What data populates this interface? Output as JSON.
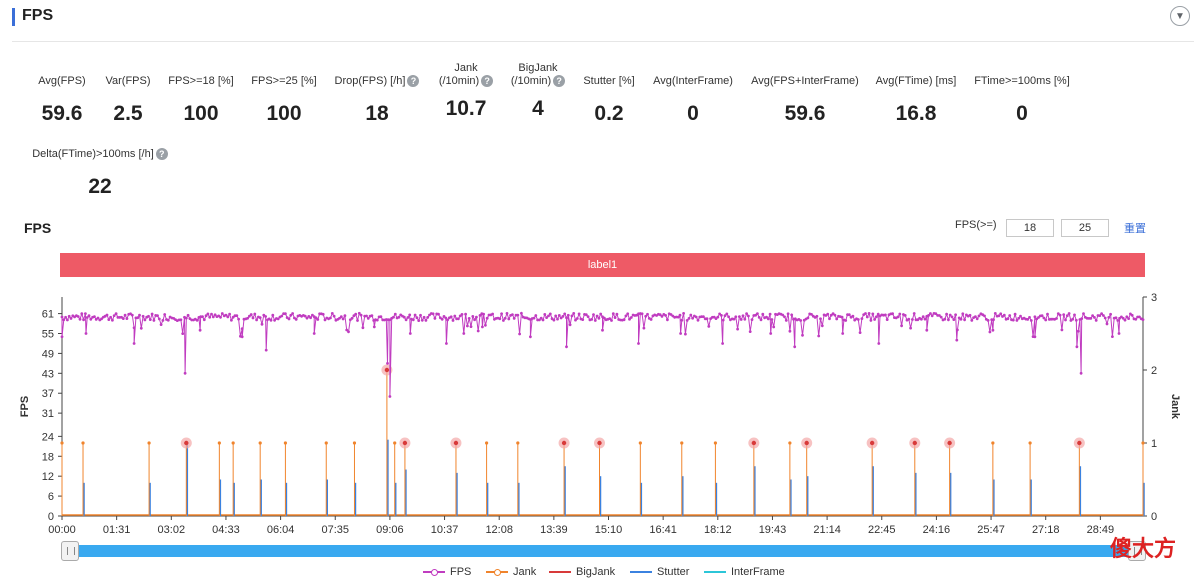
{
  "section": {
    "title": "FPS"
  },
  "metrics": [
    {
      "label": "Avg(FPS)",
      "value": "59.6"
    },
    {
      "label": "Var(FPS)",
      "value": "2.5"
    },
    {
      "label": "FPS>=18 [%]",
      "value": "100"
    },
    {
      "label": "FPS>=25 [%]",
      "value": "100"
    },
    {
      "label": "Drop(FPS) [/h]",
      "value": "18",
      "help": true
    },
    {
      "label": "Jank\n(/10min)",
      "value": "10.7",
      "help": true
    },
    {
      "label": "BigJank\n(/10min)",
      "value": "4",
      "help": true
    },
    {
      "label": "Stutter [%]",
      "value": "0.2"
    },
    {
      "label": "Avg(InterFrame)",
      "value": "0"
    },
    {
      "label": "Avg(FPS+InterFrame)",
      "value": "59.6"
    },
    {
      "label": "Avg(FTime) [ms]",
      "value": "16.8"
    },
    {
      "label": "FTime>=100ms [%]",
      "value": "0"
    },
    {
      "label": "Delta(FTime)>100ms [/h]",
      "value": "22",
      "help": true
    }
  ],
  "chart_header": {
    "title": "FPS",
    "filter_label": "FPS(>=)",
    "threshold_1": "18",
    "threshold_2": "25",
    "reset_label": "重置"
  },
  "label_band": {
    "text": "label1"
  },
  "watermark": "傻大方",
  "colors": {
    "fps": "#c03cc0",
    "jank": "#f0842c",
    "bigjank": "#d83a3a",
    "stutter": "#3b82e0",
    "interframe": "#2cc6d8",
    "band": "#ee5a66"
  },
  "chart_data": {
    "type": "line",
    "title": "FPS",
    "ylabel": "FPS",
    "y2label": "Jank",
    "yticks": [
      0,
      6,
      12,
      18,
      24,
      31,
      37,
      43,
      49,
      55,
      61
    ],
    "ylim": [
      0,
      66
    ],
    "y2ticks": [
      0,
      1,
      2,
      3
    ],
    "y2lim": [
      0,
      3
    ],
    "xticks": [
      "00:00",
      "01:31",
      "03:02",
      "04:33",
      "06:04",
      "07:35",
      "09:06",
      "10:37",
      "12:08",
      "13:39",
      "15:10",
      "16:41",
      "18:12",
      "19:43",
      "21:14",
      "22:45",
      "24:16",
      "25:47",
      "27:18",
      "28:49"
    ],
    "x_range_seconds": [
      0,
      1800
    ],
    "fps_baseline": 60,
    "fps_dips": [
      {
        "t": 0,
        "fps": 54
      },
      {
        "t": 40,
        "fps": 55
      },
      {
        "t": 120,
        "fps": 52
      },
      {
        "t": 230,
        "fps": 56
      },
      {
        "t": 300,
        "fps": 54
      },
      {
        "t": 340,
        "fps": 50
      },
      {
        "t": 420,
        "fps": 55
      },
      {
        "t": 520,
        "fps": 57
      },
      {
        "t": 580,
        "fps": 55
      },
      {
        "t": 640,
        "fps": 52
      },
      {
        "t": 700,
        "fps": 57
      },
      {
        "t": 780,
        "fps": 54
      },
      {
        "t": 840,
        "fps": 51
      },
      {
        "t": 900,
        "fps": 56
      },
      {
        "t": 960,
        "fps": 52
      },
      {
        "t": 1030,
        "fps": 55
      },
      {
        "t": 1100,
        "fps": 52
      },
      {
        "t": 1180,
        "fps": 55
      },
      {
        "t": 1220,
        "fps": 51
      },
      {
        "t": 1300,
        "fps": 55
      },
      {
        "t": 1360,
        "fps": 52
      },
      {
        "t": 1440,
        "fps": 56
      },
      {
        "t": 1490,
        "fps": 53
      },
      {
        "t": 1550,
        "fps": 56
      },
      {
        "t": 1620,
        "fps": 54
      },
      {
        "t": 1690,
        "fps": 51
      },
      {
        "t": 1760,
        "fps": 55
      }
    ],
    "fps_big_dips": [
      {
        "t": 205,
        "fps": 43
      },
      {
        "t": 542,
        "fps": 46
      },
      {
        "t": 546,
        "fps": 36
      },
      {
        "t": 1697,
        "fps": 43
      }
    ],
    "jank_events": [
      {
        "t": 0,
        "jank": 1
      },
      {
        "t": 35,
        "jank": 1
      },
      {
        "t": 145,
        "jank": 1
      },
      {
        "t": 207,
        "jank": 1,
        "big": true
      },
      {
        "t": 262,
        "jank": 1
      },
      {
        "t": 285,
        "jank": 1
      },
      {
        "t": 330,
        "jank": 1
      },
      {
        "t": 372,
        "jank": 1
      },
      {
        "t": 440,
        "jank": 1
      },
      {
        "t": 487,
        "jank": 1
      },
      {
        "t": 541,
        "jank": 2,
        "big": true
      },
      {
        "t": 554,
        "jank": 1
      },
      {
        "t": 571,
        "jank": 1,
        "big": true
      },
      {
        "t": 656,
        "jank": 1,
        "big": true
      },
      {
        "t": 707,
        "jank": 1
      },
      {
        "t": 759,
        "jank": 1
      },
      {
        "t": 836,
        "jank": 1,
        "big": true
      },
      {
        "t": 895,
        "jank": 1,
        "big": true
      },
      {
        "t": 963,
        "jank": 1
      },
      {
        "t": 1032,
        "jank": 1
      },
      {
        "t": 1088,
        "jank": 1
      },
      {
        "t": 1152,
        "jank": 1,
        "big": true
      },
      {
        "t": 1212,
        "jank": 1
      },
      {
        "t": 1240,
        "jank": 1,
        "big": true
      },
      {
        "t": 1349,
        "jank": 1,
        "big": true
      },
      {
        "t": 1420,
        "jank": 1,
        "big": true
      },
      {
        "t": 1478,
        "jank": 1,
        "big": true
      },
      {
        "t": 1550,
        "jank": 1
      },
      {
        "t": 1612,
        "jank": 1
      },
      {
        "t": 1694,
        "jank": 1,
        "big": true
      },
      {
        "t": 1800,
        "jank": 1
      }
    ],
    "stutter_events": [
      {
        "t": 35,
        "fps": 10
      },
      {
        "t": 145,
        "fps": 10
      },
      {
        "t": 207,
        "fps": 22
      },
      {
        "t": 262,
        "fps": 11
      },
      {
        "t": 285,
        "fps": 10
      },
      {
        "t": 330,
        "fps": 11
      },
      {
        "t": 372,
        "fps": 10
      },
      {
        "t": 440,
        "fps": 11
      },
      {
        "t": 487,
        "fps": 10
      },
      {
        "t": 541,
        "fps": 23
      },
      {
        "t": 554,
        "fps": 10
      },
      {
        "t": 571,
        "fps": 14
      },
      {
        "t": 656,
        "fps": 13
      },
      {
        "t": 707,
        "fps": 10
      },
      {
        "t": 759,
        "fps": 10
      },
      {
        "t": 836,
        "fps": 15
      },
      {
        "t": 895,
        "fps": 12
      },
      {
        "t": 963,
        "fps": 10
      },
      {
        "t": 1032,
        "fps": 12
      },
      {
        "t": 1088,
        "fps": 10
      },
      {
        "t": 1152,
        "fps": 15
      },
      {
        "t": 1212,
        "fps": 11
      },
      {
        "t": 1240,
        "fps": 12
      },
      {
        "t": 1349,
        "fps": 15
      },
      {
        "t": 1420,
        "fps": 13
      },
      {
        "t": 1478,
        "fps": 13
      },
      {
        "t": 1550,
        "fps": 11
      },
      {
        "t": 1612,
        "fps": 11
      },
      {
        "t": 1694,
        "fps": 15
      },
      {
        "t": 1800,
        "fps": 10
      }
    ],
    "legend": [
      "FPS",
      "Jank",
      "BigJank",
      "Stutter",
      "InterFrame"
    ],
    "legend_position": "bottom-center"
  }
}
